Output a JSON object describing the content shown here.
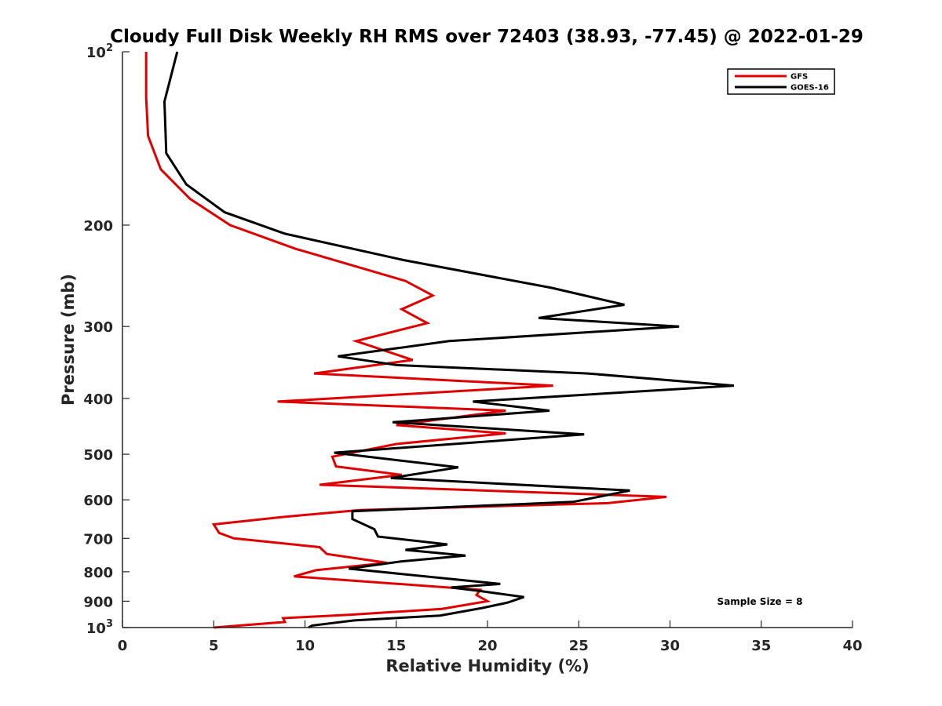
{
  "chart_data": {
    "type": "line",
    "title": "Cloudy Full Disk Weekly RH RMS over 72403 (38.93, -77.45) @ 2022-01-29",
    "xlabel": "Relative Humidity (%)",
    "ylabel": "Pressure (mb)",
    "xlim": [
      0,
      40
    ],
    "ylim": [
      100,
      1000
    ],
    "yscale": "log",
    "y_reversed": true,
    "grid": false,
    "legend_position": "top-right",
    "x_ticks": [
      "0",
      "5",
      "10",
      "15",
      "20",
      "25",
      "30",
      "35",
      "40"
    ],
    "y_ticks": [
      {
        "value": 100,
        "base": "10",
        "exp": "2"
      },
      {
        "value": 200,
        "label": "200"
      },
      {
        "value": 300,
        "label": "300"
      },
      {
        "value": 400,
        "label": "400"
      },
      {
        "value": 500,
        "label": "500"
      },
      {
        "value": 600,
        "label": "600"
      },
      {
        "value": 700,
        "label": "700"
      },
      {
        "value": 800,
        "label": "800"
      },
      {
        "value": 900,
        "label": "900"
      },
      {
        "value": 1000,
        "base": "10",
        "exp": "3"
      }
    ],
    "annotation": "Sample Size = 8",
    "series": [
      {
        "name": "GFS",
        "color": "#e00000",
        "points": [
          [
            1.3,
            100
          ],
          [
            1.3,
            120
          ],
          [
            1.4,
            140
          ],
          [
            2.1,
            160
          ],
          [
            3.7,
            180
          ],
          [
            5.9,
            200
          ],
          [
            9.5,
            220
          ],
          [
            15.5,
            250
          ],
          [
            17.0,
            265
          ],
          [
            15.3,
            280
          ],
          [
            16.7,
            296
          ],
          [
            12.8,
            318
          ],
          [
            15.9,
            343
          ],
          [
            10.5,
            362
          ],
          [
            23.6,
            380
          ],
          [
            8.5,
            405
          ],
          [
            21.0,
            420
          ],
          [
            15.0,
            445
          ],
          [
            21.0,
            460
          ],
          [
            15.0,
            480
          ],
          [
            11.5,
            505
          ],
          [
            11.7,
            525
          ],
          [
            15.3,
            543
          ],
          [
            10.8,
            565
          ],
          [
            29.8,
            593
          ],
          [
            26.6,
            608
          ],
          [
            13.0,
            625
          ],
          [
            8.7,
            643
          ],
          [
            5.0,
            662
          ],
          [
            5.3,
            685
          ],
          [
            6.1,
            700
          ],
          [
            10.8,
            725
          ],
          [
            11.2,
            745
          ],
          [
            14.5,
            772
          ],
          [
            10.6,
            795
          ],
          [
            9.4,
            815
          ],
          [
            19.6,
            860
          ],
          [
            19.4,
            878
          ],
          [
            20.0,
            900
          ],
          [
            17.5,
            928
          ],
          [
            12.5,
            950
          ],
          [
            8.8,
            963
          ],
          [
            8.9,
            978
          ],
          [
            5.0,
            1000
          ]
        ]
      },
      {
        "name": "GOES-16",
        "color": "#000000",
        "points": [
          [
            3.0,
            100
          ],
          [
            2.3,
            122
          ],
          [
            2.4,
            150
          ],
          [
            3.5,
            170
          ],
          [
            5.6,
            190
          ],
          [
            8.9,
            207
          ],
          [
            15.4,
            230
          ],
          [
            23.5,
            257
          ],
          [
            27.5,
            275
          ],
          [
            22.8,
            290
          ],
          [
            30.5,
            300
          ],
          [
            17.9,
            318
          ],
          [
            11.8,
            338
          ],
          [
            15.0,
            350
          ],
          [
            25.5,
            362
          ],
          [
            33.5,
            380
          ],
          [
            19.2,
            405
          ],
          [
            23.4,
            420
          ],
          [
            14.8,
            440
          ],
          [
            25.3,
            462
          ],
          [
            11.6,
            497
          ],
          [
            18.4,
            527
          ],
          [
            14.7,
            550
          ],
          [
            27.8,
            578
          ],
          [
            24.7,
            605
          ],
          [
            12.6,
            628
          ],
          [
            12.6,
            648
          ],
          [
            13.8,
            675
          ],
          [
            14.0,
            695
          ],
          [
            17.8,
            717
          ],
          [
            15.5,
            733
          ],
          [
            18.8,
            750
          ],
          [
            15.2,
            768
          ],
          [
            12.4,
            790
          ],
          [
            20.7,
            840
          ],
          [
            18.0,
            852
          ],
          [
            19.7,
            865
          ],
          [
            22.0,
            885
          ],
          [
            21.1,
            905
          ],
          [
            19.7,
            925
          ],
          [
            17.4,
            953
          ],
          [
            12.7,
            972
          ],
          [
            10.4,
            992
          ],
          [
            10.2,
            1000
          ]
        ]
      }
    ]
  }
}
